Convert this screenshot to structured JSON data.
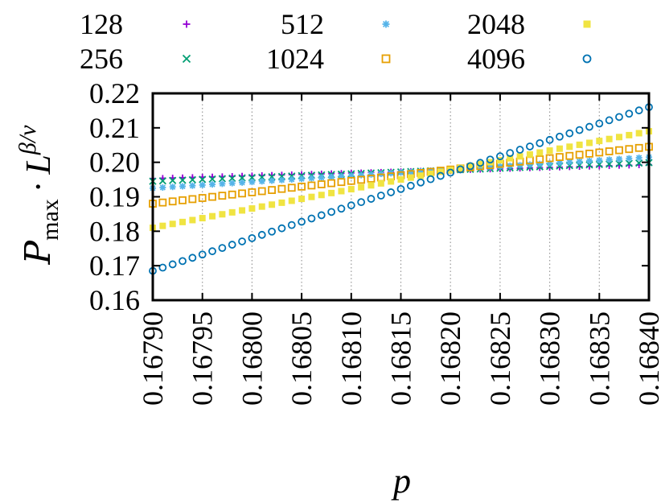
{
  "chart_data": {
    "type": "scatter",
    "title": "",
    "xlabel": "p",
    "ylabel": "P_max · L^{β/ν}",
    "ylabel_parts": {
      "script_p": "P",
      "sub": "max",
      "dot": "·",
      "L": "L",
      "sup": "β/ν"
    },
    "xlim": [
      0.1679,
      0.1684
    ],
    "ylim": [
      0.16,
      0.22
    ],
    "x_ticks": [
      "0.16790",
      "0.16795",
      "0.16800",
      "0.16805",
      "0.16810",
      "0.16815",
      "0.16820",
      "0.16825",
      "0.16830",
      "0.16835",
      "0.16840"
    ],
    "y_ticks": [
      "0.16",
      "0.17",
      "0.18",
      "0.19",
      "0.20",
      "0.21",
      "0.22"
    ],
    "grid": "vertical-dotted",
    "legend_position": "top",
    "series": [
      {
        "name": "128",
        "marker": "plus",
        "color": "#9400d3",
        "y_start": 0.1953,
        "y_end": 0.1993
      },
      {
        "name": "256",
        "marker": "cross",
        "color": "#009e73",
        "y_start": 0.1945,
        "y_end": 0.1999
      },
      {
        "name": "512",
        "marker": "star",
        "color": "#56b4e9",
        "y_start": 0.1925,
        "y_end": 0.2015
      },
      {
        "name": "1024",
        "marker": "square",
        "color": "#e69f00",
        "y_start": 0.188,
        "y_end": 0.2045
      },
      {
        "name": "2048",
        "marker": "filled-square",
        "color": "#f0e442",
        "y_start": 0.181,
        "y_end": 0.209
      },
      {
        "name": "4096",
        "marker": "circle",
        "color": "#0072b2",
        "y_start": 0.1685,
        "y_end": 0.216
      }
    ],
    "points_per_series": 51
  }
}
